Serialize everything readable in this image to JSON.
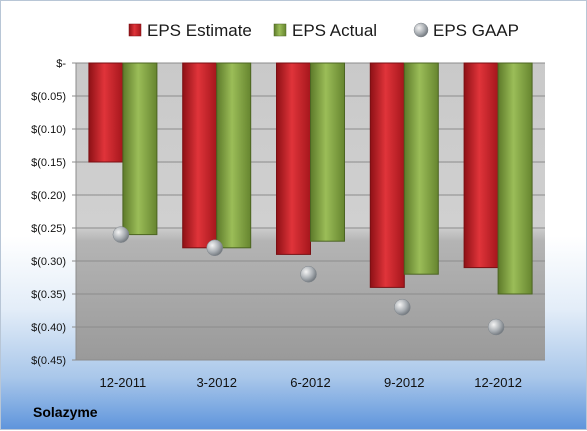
{
  "chart_data": {
    "type": "bar",
    "categories": [
      "12-2011",
      "3-2012",
      "6-2012",
      "9-2012",
      "12-2012"
    ],
    "series": [
      {
        "name": "EPS Estimate",
        "type": "bar",
        "values": [
          -0.15,
          -0.28,
          -0.29,
          -0.34,
          -0.31
        ],
        "color": "#c0282d"
      },
      {
        "name": "EPS Actual",
        "type": "bar",
        "values": [
          -0.26,
          -0.28,
          -0.27,
          -0.32,
          -0.35
        ],
        "color": "#7a9a3c"
      },
      {
        "name": "EPS GAAP",
        "type": "scatter",
        "values": [
          -0.26,
          -0.28,
          -0.32,
          -0.37,
          -0.4
        ],
        "color": "#9fa6ad"
      }
    ],
    "ylim": [
      -0.45,
      0
    ],
    "yticks": [
      0,
      -0.05,
      -0.1,
      -0.15,
      -0.2,
      -0.25,
      -0.3,
      -0.35,
      -0.4,
      -0.45
    ],
    "ytick_labels": [
      "$-",
      "$(0.05)",
      "$(0.10)",
      "$(0.15)",
      "$(0.20)",
      "$(0.25)",
      "$(0.30)",
      "$(0.35)",
      "$(0.40)",
      "$(0.45)"
    ],
    "legend_position": "top",
    "grid": true,
    "footer_label": "Solazyme"
  }
}
